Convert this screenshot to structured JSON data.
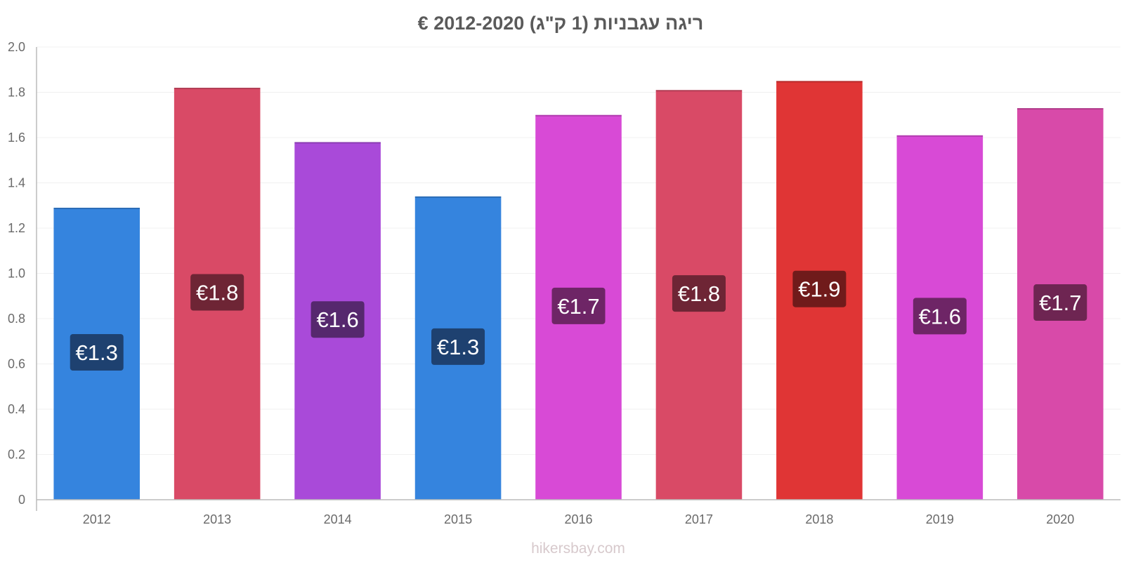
{
  "chart_data": {
    "type": "bar",
    "title": "ריגה עגבניות (1 ק\"ג) 2012-2020 €",
    "xlabel": "",
    "ylabel": "",
    "ylim": [
      0,
      2.0
    ],
    "yticks": [
      0,
      0.2,
      0.4,
      0.6,
      0.8,
      1.0,
      1.2,
      1.4,
      1.6,
      1.8,
      2.0
    ],
    "ytick_labels": [
      "0",
      "0.2",
      "0.4",
      "0.6",
      "0.8",
      "1.0",
      "1.2",
      "1.4",
      "1.6",
      "1.8",
      "2.0"
    ],
    "grid": true,
    "categories": [
      "2012",
      "2013",
      "2014",
      "2015",
      "2016",
      "2017",
      "2018",
      "2019",
      "2020"
    ],
    "values": [
      1.29,
      1.82,
      1.58,
      1.34,
      1.7,
      1.81,
      1.85,
      1.61,
      1.73
    ],
    "data_labels": [
      "€1.3",
      "€1.8",
      "€1.6",
      "€1.3",
      "€1.7",
      "€1.8",
      "€1.9",
      "€1.6",
      "€1.7"
    ],
    "bar_colors": [
      "#3584de",
      "#d94a66",
      "#a94ad9",
      "#3584de",
      "#d84ad6",
      "#d94a66",
      "#e03535",
      "#d84ad6",
      "#d84aa9"
    ],
    "label_bg_colors": [
      "#1e4170",
      "#6e2535",
      "#56286e",
      "#1e4170",
      "#6e2566",
      "#6e2535",
      "#701b1b",
      "#6e2566",
      "#6e2552"
    ]
  },
  "watermark": "hikersbay.com",
  "colors": {
    "axis": "#bbbbbb",
    "grid": "#f0f0f0",
    "title": "#5a5a5a",
    "tick_text": "#6a6a6a"
  }
}
